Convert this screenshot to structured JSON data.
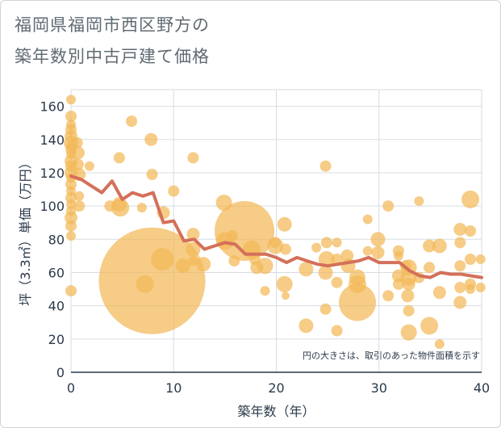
{
  "title_line1": "福岡県福岡市西区野方の",
  "title_line2": "築年数別中古戸建て価格",
  "chart_data": {
    "type": "scatter",
    "title": "福岡県福岡市西区野方の 築年数別中古戸建て価格",
    "xlabel": "築年数（年）",
    "ylabel": "坪（3.3㎡）単価（万円）",
    "xlim": [
      0,
      40
    ],
    "ylim": [
      0,
      170
    ],
    "xticks": [
      0,
      10,
      20,
      30,
      40
    ],
    "yticks": [
      0,
      20,
      40,
      60,
      80,
      100,
      120,
      140,
      160
    ],
    "grid": true,
    "note": "円の大きさは、取引のあった物件面積を示す",
    "colors": {
      "bubble": "#f2b957",
      "trend": "#d4705a",
      "grid": "#d7dde2",
      "axis": "#2b3a4a"
    },
    "bubbles": [
      {
        "x": 0,
        "y": 164,
        "s": 6
      },
      {
        "x": 0,
        "y": 154,
        "s": 7
      },
      {
        "x": 0,
        "y": 149,
        "s": 6
      },
      {
        "x": 0,
        "y": 146,
        "s": 7
      },
      {
        "x": 0,
        "y": 142,
        "s": 8
      },
      {
        "x": 0,
        "y": 138,
        "s": 9
      },
      {
        "x": 0,
        "y": 136,
        "s": 6
      },
      {
        "x": 0,
        "y": 134,
        "s": 7
      },
      {
        "x": 0,
        "y": 131,
        "s": 6
      },
      {
        "x": 0,
        "y": 127,
        "s": 8
      },
      {
        "x": 0,
        "y": 124,
        "s": 7
      },
      {
        "x": 0,
        "y": 120,
        "s": 8
      },
      {
        "x": 0,
        "y": 117,
        "s": 6
      },
      {
        "x": 0,
        "y": 113,
        "s": 7
      },
      {
        "x": 0,
        "y": 109,
        "s": 6
      },
      {
        "x": 0,
        "y": 105,
        "s": 7
      },
      {
        "x": 0,
        "y": 101,
        "s": 6
      },
      {
        "x": 0,
        "y": 97,
        "s": 6
      },
      {
        "x": 0,
        "y": 93,
        "s": 8
      },
      {
        "x": 0,
        "y": 88,
        "s": 7
      },
      {
        "x": 0,
        "y": 82,
        "s": 6
      },
      {
        "x": 0,
        "y": 49,
        "s": 7
      },
      {
        "x": 0.6,
        "y": 138,
        "s": 7
      },
      {
        "x": 0.7,
        "y": 132,
        "s": 8
      },
      {
        "x": 0.7,
        "y": 125,
        "s": 7
      },
      {
        "x": 0.8,
        "y": 119,
        "s": 8
      },
      {
        "x": 0.8,
        "y": 106,
        "s": 6
      },
      {
        "x": 0.8,
        "y": 100,
        "s": 7
      },
      {
        "x": 1.8,
        "y": 124,
        "s": 6
      },
      {
        "x": 3.8,
        "y": 100,
        "s": 7
      },
      {
        "x": 4.7,
        "y": 101,
        "s": 9
      },
      {
        "x": 4.8,
        "y": 99,
        "s": 11
      },
      {
        "x": 4.7,
        "y": 129,
        "s": 7
      },
      {
        "x": 5.9,
        "y": 151,
        "s": 7
      },
      {
        "x": 6.9,
        "y": 99,
        "s": 6
      },
      {
        "x": 7.2,
        "y": 53,
        "s": 11
      },
      {
        "x": 7.8,
        "y": 140,
        "s": 8
      },
      {
        "x": 7.9,
        "y": 119,
        "s": 7
      },
      {
        "x": 7.9,
        "y": 55,
        "s": 66
      },
      {
        "x": 8.9,
        "y": 68,
        "s": 14
      },
      {
        "x": 9.0,
        "y": 96,
        "s": 8
      },
      {
        "x": 10.0,
        "y": 109,
        "s": 7
      },
      {
        "x": 10.9,
        "y": 64,
        "s": 9
      },
      {
        "x": 11.9,
        "y": 129,
        "s": 7
      },
      {
        "x": 11.9,
        "y": 83,
        "s": 8
      },
      {
        "x": 11.9,
        "y": 74,
        "s": 9
      },
      {
        "x": 11.9,
        "y": 67,
        "s": 6
      },
      {
        "x": 12.9,
        "y": 65,
        "s": 9
      },
      {
        "x": 14.9,
        "y": 102,
        "s": 10
      },
      {
        "x": 15.0,
        "y": 79,
        "s": 11
      },
      {
        "x": 15.7,
        "y": 82,
        "s": 7
      },
      {
        "x": 15.9,
        "y": 67,
        "s": 7
      },
      {
        "x": 16.9,
        "y": 85,
        "s": 37
      },
      {
        "x": 17.6,
        "y": 74,
        "s": 11
      },
      {
        "x": 17.9,
        "y": 68,
        "s": 7
      },
      {
        "x": 18.1,
        "y": 63,
        "s": 8
      },
      {
        "x": 18.9,
        "y": 64,
        "s": 10
      },
      {
        "x": 18.9,
        "y": 49,
        "s": 6
      },
      {
        "x": 19.9,
        "y": 78,
        "s": 7
      },
      {
        "x": 19.9,
        "y": 76,
        "s": 10
      },
      {
        "x": 20.8,
        "y": 89,
        "s": 9
      },
      {
        "x": 20.9,
        "y": 74,
        "s": 7
      },
      {
        "x": 20.8,
        "y": 53,
        "s": 10
      },
      {
        "x": 20.9,
        "y": 46,
        "s": 5
      },
      {
        "x": 22.9,
        "y": 62,
        "s": 9
      },
      {
        "x": 22.9,
        "y": 28,
        "s": 9
      },
      {
        "x": 23.9,
        "y": 75,
        "s": 6
      },
      {
        "x": 24.8,
        "y": 124,
        "s": 7
      },
      {
        "x": 24.9,
        "y": 78,
        "s": 7
      },
      {
        "x": 24.9,
        "y": 68,
        "s": 10
      },
      {
        "x": 24.8,
        "y": 60,
        "s": 9
      },
      {
        "x": 24.8,
        "y": 38,
        "s": 7
      },
      {
        "x": 25.9,
        "y": 78,
        "s": 6
      },
      {
        "x": 25.9,
        "y": 68,
        "s": 7
      },
      {
        "x": 25.9,
        "y": 54,
        "s": 7
      },
      {
        "x": 25.9,
        "y": 25,
        "s": 7
      },
      {
        "x": 26.9,
        "y": 70,
        "s": 8
      },
      {
        "x": 27.0,
        "y": 64,
        "s": 9
      },
      {
        "x": 27.9,
        "y": 57,
        "s": 10
      },
      {
        "x": 27.9,
        "y": 53,
        "s": 11
      },
      {
        "x": 27.9,
        "y": 42,
        "s": 23
      },
      {
        "x": 28.9,
        "y": 92,
        "s": 6
      },
      {
        "x": 28.9,
        "y": 73,
        "s": 6
      },
      {
        "x": 29.9,
        "y": 80,
        "s": 9
      },
      {
        "x": 29.9,
        "y": 72,
        "s": 8
      },
      {
        "x": 30.9,
        "y": 100,
        "s": 7
      },
      {
        "x": 30.9,
        "y": 46,
        "s": 7
      },
      {
        "x": 31.9,
        "y": 73,
        "s": 7
      },
      {
        "x": 31.9,
        "y": 70,
        "s": 6
      },
      {
        "x": 31.9,
        "y": 58,
        "s": 8
      },
      {
        "x": 31.9,
        "y": 53,
        "s": 7
      },
      {
        "x": 32.6,
        "y": 64,
        "s": 7
      },
      {
        "x": 32.9,
        "y": 63,
        "s": 10
      },
      {
        "x": 32.9,
        "y": 57,
        "s": 10
      },
      {
        "x": 32.9,
        "y": 53,
        "s": 8
      },
      {
        "x": 32.8,
        "y": 46,
        "s": 8
      },
      {
        "x": 32.9,
        "y": 37,
        "s": 7
      },
      {
        "x": 32.9,
        "y": 24,
        "s": 10
      },
      {
        "x": 33.9,
        "y": 103,
        "s": 6
      },
      {
        "x": 33.9,
        "y": 57,
        "s": 7
      },
      {
        "x": 34.9,
        "y": 76,
        "s": 8
      },
      {
        "x": 34.9,
        "y": 63,
        "s": 7
      },
      {
        "x": 34.9,
        "y": 28,
        "s": 11
      },
      {
        "x": 35.9,
        "y": 76,
        "s": 9
      },
      {
        "x": 35.9,
        "y": 48,
        "s": 8
      },
      {
        "x": 35.9,
        "y": 17,
        "s": 6
      },
      {
        "x": 37.9,
        "y": 86,
        "s": 8
      },
      {
        "x": 37.9,
        "y": 78,
        "s": 7
      },
      {
        "x": 37.9,
        "y": 64,
        "s": 7
      },
      {
        "x": 37.9,
        "y": 51,
        "s": 7
      },
      {
        "x": 37.9,
        "y": 42,
        "s": 8
      },
      {
        "x": 38.9,
        "y": 104,
        "s": 11
      },
      {
        "x": 38.9,
        "y": 85,
        "s": 7
      },
      {
        "x": 38.9,
        "y": 68,
        "s": 7
      },
      {
        "x": 38.9,
        "y": 53,
        "s": 7
      },
      {
        "x": 38.9,
        "y": 50,
        "s": 6
      },
      {
        "x": 39.9,
        "y": 68,
        "s": 6
      },
      {
        "x": 39.9,
        "y": 51,
        "s": 6
      }
    ],
    "trend": {
      "name": "",
      "x": [
        0,
        1,
        2,
        3,
        4,
        5,
        6,
        7,
        8,
        9,
        10,
        11,
        12,
        13,
        14,
        15,
        16,
        17,
        18,
        19,
        20,
        21,
        22,
        23,
        24,
        25,
        26,
        27,
        28,
        29,
        30,
        31,
        32,
        33,
        34,
        35,
        36,
        37,
        38,
        39,
        40
      ],
      "y": [
        118,
        116,
        112,
        108,
        115,
        104,
        108,
        106,
        108,
        90,
        91,
        79,
        80,
        74,
        76,
        78,
        77,
        71,
        71,
        71,
        69,
        66,
        69,
        67,
        65,
        64,
        65,
        66,
        67,
        69,
        66,
        66,
        66,
        61,
        58,
        57,
        60,
        59,
        59,
        58,
        57
      ]
    }
  }
}
